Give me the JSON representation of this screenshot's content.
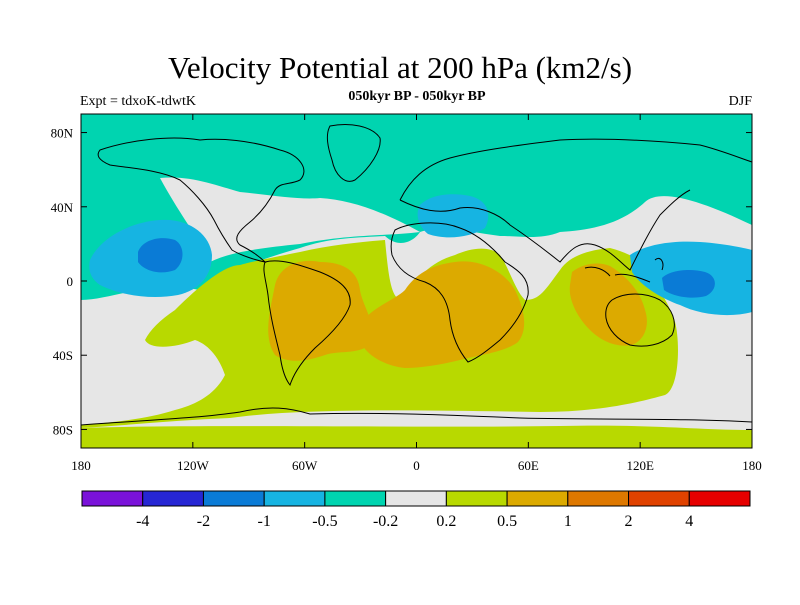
{
  "title": "Velocity Potential at 200 hPa (km2/s)",
  "subtitle": "050kyr BP - 050kyr BP",
  "left_label": "Expt = tdxoK-tdwtK",
  "right_label": "DJF",
  "map": {
    "projection": "cylindrical-equidistant",
    "lon_range": [
      -180,
      180
    ],
    "lat_range": [
      -90,
      90
    ],
    "lat_ticks": [
      {
        "value": 80,
        "label": "80N"
      },
      {
        "value": 40,
        "label": "40N"
      },
      {
        "value": 0,
        "label": "0"
      },
      {
        "value": -40,
        "label": "40S"
      },
      {
        "value": -80,
        "label": "80S"
      }
    ],
    "lon_ticks": [
      {
        "value": -180,
        "label": "180"
      },
      {
        "value": -120,
        "label": "120W"
      },
      {
        "value": -60,
        "label": "60W"
      },
      {
        "value": 0,
        "label": "0"
      },
      {
        "value": 60,
        "label": "60E"
      },
      {
        "value": 120,
        "label": "120E"
      },
      {
        "value": 180,
        "label": "180"
      }
    ]
  },
  "colorbar": {
    "colors": [
      "#7a12d9",
      "#2626d4",
      "#0a7bd6",
      "#16b4e2",
      "#00d4b0",
      "#e6e6e6",
      "#b8d900",
      "#dcaa00",
      "#de7800",
      "#e04200",
      "#e60000"
    ],
    "labels": [
      "-4",
      "-2",
      "-1",
      "-0.5",
      "-0.2",
      "0.2",
      "0.5",
      "1",
      "2",
      "4"
    ]
  },
  "colors": {
    "background_field": "#00d4b0",
    "coastline": "#000000"
  }
}
